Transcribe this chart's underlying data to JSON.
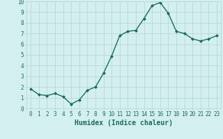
{
  "x": [
    0,
    1,
    2,
    3,
    4,
    5,
    6,
    7,
    8,
    9,
    10,
    11,
    12,
    13,
    14,
    15,
    16,
    17,
    18,
    19,
    20,
    21,
    22,
    23
  ],
  "y": [
    1.8,
    1.3,
    1.2,
    1.4,
    1.1,
    0.4,
    0.8,
    1.7,
    2.0,
    3.3,
    4.9,
    6.8,
    7.2,
    7.3,
    8.4,
    9.6,
    9.9,
    8.9,
    7.2,
    7.0,
    6.5,
    6.3,
    6.5,
    6.8
  ],
  "line_color": "#1a6b5a",
  "marker": "D",
  "marker_size": 2.0,
  "bg_color": "#d4efef",
  "grid_color": "#b8d8d8",
  "xlabel": "Humidex (Indice chaleur)",
  "ylim": [
    0,
    10
  ],
  "xlim_min": -0.5,
  "xlim_max": 23.5,
  "yticks": [
    0,
    1,
    2,
    3,
    4,
    5,
    6,
    7,
    8,
    9,
    10
  ],
  "xticks": [
    0,
    1,
    2,
    3,
    4,
    5,
    6,
    7,
    8,
    9,
    10,
    11,
    12,
    13,
    14,
    15,
    16,
    17,
    18,
    19,
    20,
    21,
    22,
    23
  ],
  "tick_fontsize": 5.5,
  "xlabel_fontsize": 7.0,
  "xlabel_fontweight": "bold",
  "linewidth": 1.0
}
